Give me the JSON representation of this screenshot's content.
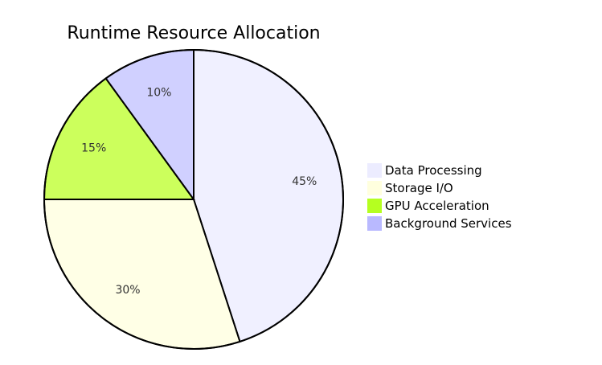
{
  "chart_data": {
    "type": "pie",
    "title": "Runtime Resource Allocation",
    "slices": [
      {
        "label": "Data Processing",
        "value": 45,
        "display": "45%",
        "color": "#ececff"
      },
      {
        "label": "Storage I/O",
        "value": 30,
        "display": "30%",
        "color": "#ffffde"
      },
      {
        "label": "GPU Acceleration",
        "value": 15,
        "display": "15%",
        "color": "#b5ff20"
      },
      {
        "label": "Background Services",
        "value": 10,
        "display": "10%",
        "color": "#b9b9ff"
      }
    ],
    "slice_color_scale": "light",
    "legend_position": "right"
  }
}
